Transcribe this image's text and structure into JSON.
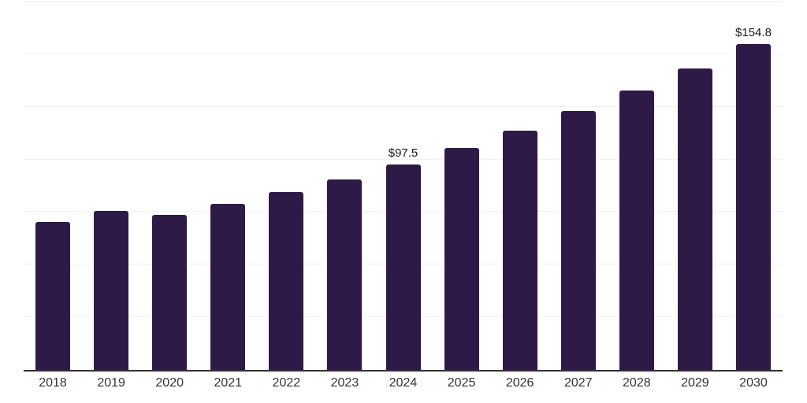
{
  "chart_data": {
    "type": "bar",
    "title": "",
    "xlabel": "",
    "ylabel": "",
    "categories": [
      "2018",
      "2019",
      "2020",
      "2021",
      "2022",
      "2023",
      "2024",
      "2025",
      "2026",
      "2027",
      "2028",
      "2029",
      "2030"
    ],
    "values": [
      70.4,
      75.4,
      73.7,
      79.1,
      84.6,
      90.6,
      97.5,
      105.4,
      113.8,
      122.9,
      132.7,
      143.4,
      154.8
    ],
    "data_labels": [
      null,
      null,
      null,
      null,
      null,
      null,
      "$97.5",
      null,
      null,
      null,
      null,
      null,
      "$154.8"
    ],
    "ylim": [
      0,
      175
    ],
    "gridline_values": [
      25,
      50,
      75,
      100,
      125,
      150,
      175
    ],
    "grid": "horizontal",
    "legend": "none",
    "colors": {
      "bar": "#2e1a47",
      "axis_line": "#333333",
      "gridline": "#f0f0f0",
      "data_label": "#1a1a1a",
      "tick_label": "#333333",
      "background": "#ffffff"
    }
  }
}
